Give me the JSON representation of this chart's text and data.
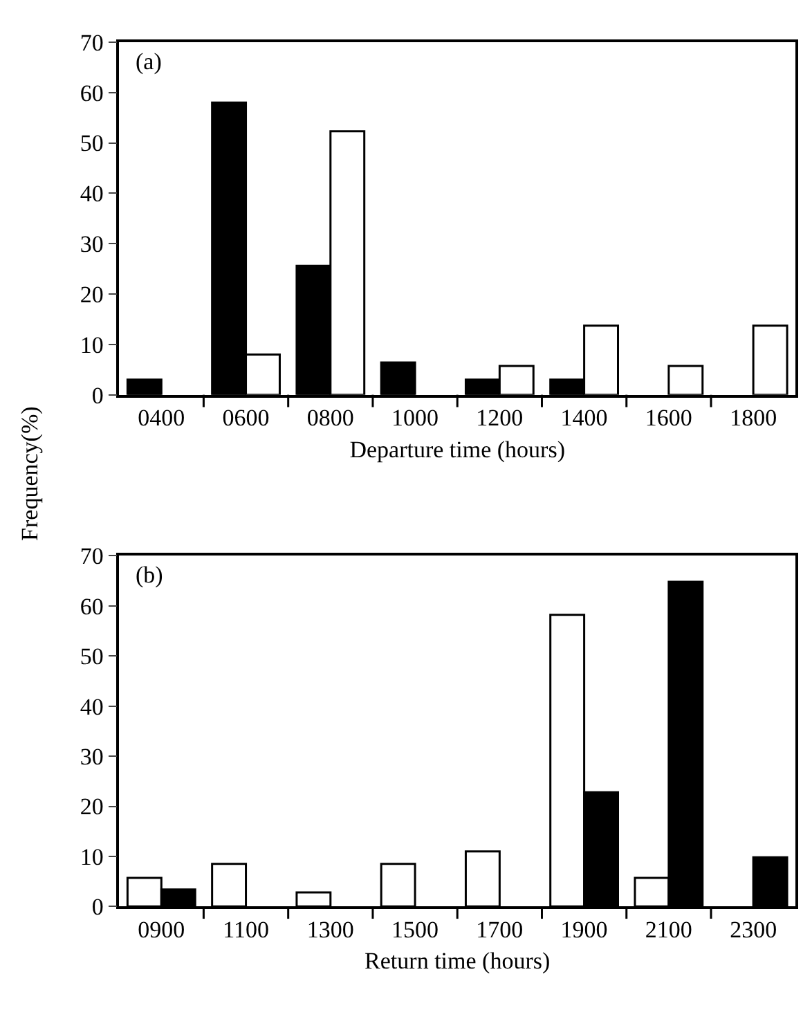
{
  "chart_data": [
    {
      "type": "bar",
      "xlabel": "Departure time (hours)",
      "ylabel": "Frequency(%)",
      "annotations": [
        "(a)"
      ],
      "categories": [
        "0400",
        "0600",
        "0800",
        "1000",
        "1200",
        "1400",
        "1600",
        "1800"
      ],
      "series": [
        {
          "color": "#000000",
          "values": [
            3,
            58,
            25.6,
            6.4,
            3,
            3,
            null,
            null
          ]
        },
        {
          "color": "#ffffff",
          "values": [
            null,
            8,
            52.3,
            null,
            5.7,
            13.7,
            5.7,
            13.7
          ]
        }
      ],
      "ylim": [
        0,
        70
      ],
      "yticks": [
        0,
        10,
        20,
        30,
        40,
        50,
        60,
        70
      ]
    },
    {
      "type": "bar",
      "xlabel": "Return time (hours)",
      "annotations": [
        "(b)"
      ],
      "categories": [
        "0900",
        "1100",
        "1300",
        "1500",
        "1700",
        "1900",
        "2100",
        "2300"
      ],
      "series": [
        {
          "color": "#ffffff",
          "values": [
            5.7,
            8.5,
            2.8,
            8.5,
            11,
            58.2,
            5.7,
            null
          ]
        },
        {
          "color": "#000000",
          "values": [
            3.4,
            null,
            null,
            null,
            null,
            22.8,
            64.8,
            9.8
          ]
        }
      ],
      "ylim": [
        0,
        70
      ],
      "yticks": [
        0,
        10,
        20,
        30,
        40,
        50,
        60,
        70
      ]
    }
  ]
}
